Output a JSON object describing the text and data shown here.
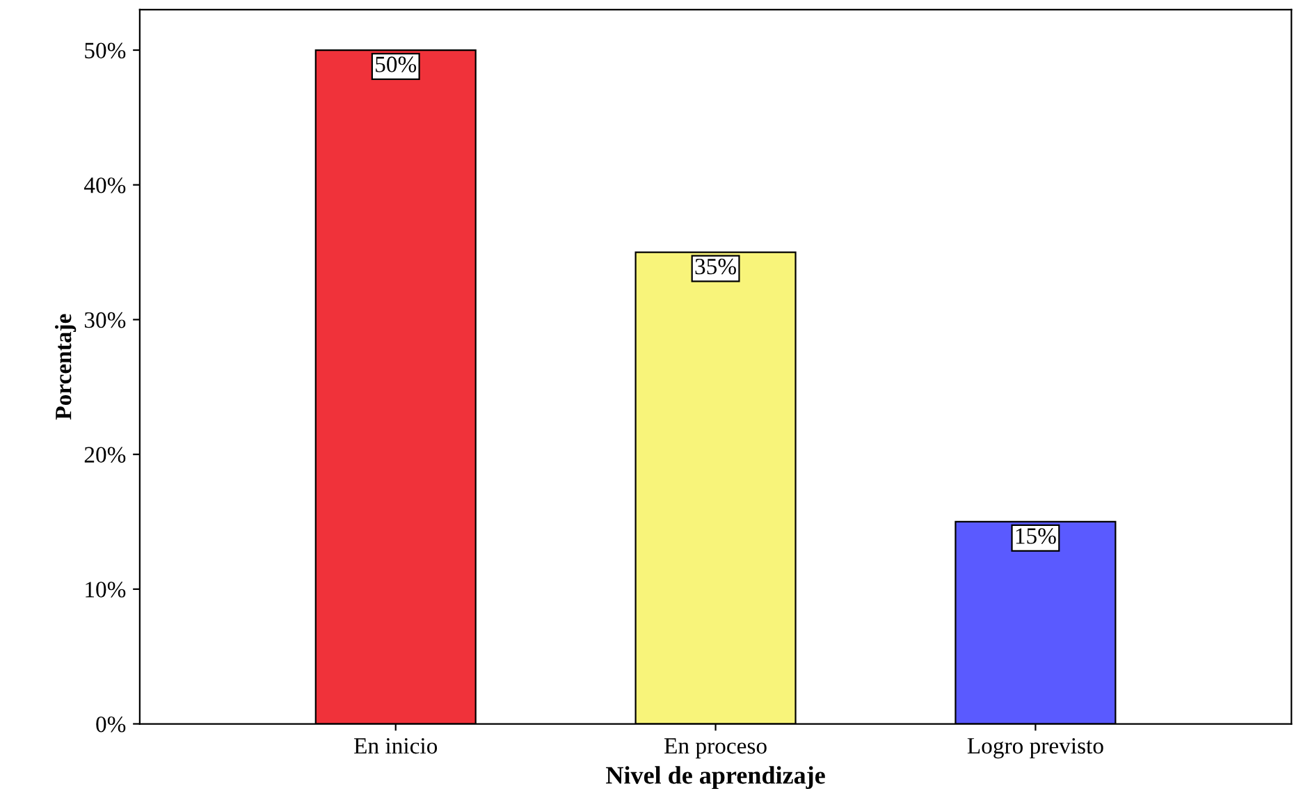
{
  "chart_data": {
    "type": "bar",
    "xlabel": "Nivel de aprendizaje",
    "ylabel": "Porcentaje",
    "categories": [
      "En inicio",
      "En proceso",
      "Logro previsto"
    ],
    "values": [
      50,
      35,
      15
    ],
    "colors": [
      "#f0323a",
      "#f8f47a",
      "#5a5aff"
    ],
    "value_labels": [
      "50%",
      "35%",
      "15%"
    ],
    "ylim": [
      0,
      53
    ],
    "yticks": [
      {
        "value": 0,
        "label": "0%"
      },
      {
        "value": 10,
        "label": "10%"
      },
      {
        "value": 20,
        "label": "20%"
      },
      {
        "value": 30,
        "label": "30%"
      },
      {
        "value": 40,
        "label": "40%"
      },
      {
        "value": 50,
        "label": "50%"
      }
    ],
    "grid": false,
    "legend": false
  }
}
